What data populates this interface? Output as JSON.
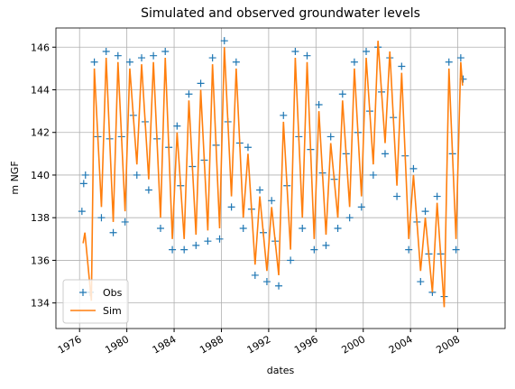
{
  "chart_data": {
    "type": "line",
    "title": "Simulated and observed groundwater levels",
    "x_label": "dates",
    "y_label": "m NGF",
    "xlim": [
      1974.0,
      2012.0
    ],
    "xticks": [
      1976,
      1980,
      1984,
      1988,
      1992,
      1996,
      2000,
      2004,
      2008
    ],
    "ylim": [
      132.8,
      146.9
    ],
    "yticks": [
      134,
      136,
      138,
      140,
      142,
      144,
      146
    ],
    "grid": true,
    "legend": "lower left",
    "series": [
      {
        "name": "Obs",
        "color": "#1f77b4",
        "marker": "+",
        "x": [
          1976.2,
          1976.35,
          1976.5,
          1976.9,
          1977.25,
          1977.55,
          1977.85,
          1978.25,
          1978.55,
          1978.85,
          1979.25,
          1979.55,
          1979.85,
          1980.25,
          1980.55,
          1980.85,
          1981.25,
          1981.55,
          1981.85,
          1982.25,
          1982.55,
          1982.85,
          1983.25,
          1983.55,
          1983.85,
          1984.25,
          1984.55,
          1984.85,
          1985.25,
          1985.55,
          1985.85,
          1986.25,
          1986.55,
          1986.85,
          1987.25,
          1987.55,
          1987.85,
          1988.25,
          1988.55,
          1988.85,
          1989.25,
          1989.55,
          1989.85,
          1990.25,
          1990.55,
          1990.85,
          1991.25,
          1991.55,
          1991.85,
          1992.25,
          1992.55,
          1992.85,
          1993.25,
          1993.55,
          1993.85,
          1994.25,
          1994.55,
          1994.85,
          1995.25,
          1995.55,
          1995.85,
          1996.25,
          1996.55,
          1996.85,
          1997.25,
          1997.55,
          1997.85,
          1998.25,
          1998.55,
          1998.85,
          1999.25,
          1999.55,
          1999.85,
          2000.25,
          2000.55,
          2000.85,
          2001.25,
          2001.55,
          2001.85,
          2002.25,
          2002.55,
          2002.85,
          2003.25,
          2003.55,
          2003.85,
          2004.25,
          2004.55,
          2004.85,
          2005.25,
          2005.55,
          2005.85,
          2006.25,
          2006.55,
          2006.85,
          2007.25,
          2007.55,
          2007.85,
          2008.25,
          2008.45
        ],
        "values": [
          138.3,
          139.6,
          140.0,
          134.5,
          145.3,
          141.8,
          138.0,
          145.8,
          141.7,
          137.3,
          145.6,
          141.8,
          137.8,
          145.3,
          142.8,
          140.0,
          145.5,
          142.5,
          139.3,
          145.6,
          141.7,
          137.5,
          145.8,
          141.3,
          136.5,
          142.3,
          139.5,
          136.5,
          143.8,
          140.4,
          136.7,
          144.3,
          140.7,
          136.9,
          145.5,
          141.4,
          137.0,
          146.3,
          142.5,
          138.5,
          145.3,
          141.5,
          137.5,
          141.3,
          138.4,
          135.3,
          139.3,
          137.3,
          135.0,
          138.8,
          136.9,
          134.8,
          142.8,
          139.5,
          136.0,
          145.8,
          141.8,
          137.5,
          145.6,
          141.2,
          136.5,
          143.3,
          140.1,
          136.7,
          141.8,
          139.8,
          137.5,
          143.8,
          141.0,
          138.0,
          145.3,
          142.0,
          138.5,
          145.8,
          143.0,
          140.0,
          146.0,
          143.9,
          141.0,
          145.5,
          142.7,
          139.0,
          145.1,
          140.9,
          136.5,
          140.3,
          137.8,
          135.0,
          138.3,
          136.3,
          134.5,
          139.0,
          136.3,
          134.3,
          145.3,
          141.0,
          136.5,
          145.5,
          144.5
        ]
      },
      {
        "name": "Sim",
        "color": "#ff7f0e",
        "x": [
          1976.3,
          1976.45,
          1977.0,
          1977.25,
          1977.85,
          1978.25,
          1978.85,
          1979.25,
          1979.85,
          1980.25,
          1980.85,
          1981.25,
          1981.85,
          1982.25,
          1982.85,
          1983.25,
          1983.85,
          1984.25,
          1984.85,
          1985.25,
          1985.85,
          1986.25,
          1986.85,
          1987.25,
          1987.85,
          1988.25,
          1988.85,
          1989.25,
          1989.85,
          1990.25,
          1990.85,
          1991.25,
          1991.85,
          1992.25,
          1992.85,
          1993.25,
          1993.85,
          1994.25,
          1994.85,
          1995.25,
          1995.85,
          1996.25,
          1996.85,
          1997.25,
          1997.85,
          1998.25,
          1998.85,
          1999.25,
          1999.85,
          2000.25,
          2000.85,
          2001.25,
          2001.85,
          2002.25,
          2002.85,
          2003.25,
          2003.85,
          2004.25,
          2004.85,
          2005.25,
          2005.85,
          2006.25,
          2006.85,
          2007.25,
          2007.85,
          2008.25,
          2008.4
        ],
        "values": [
          136.8,
          137.3,
          134.1,
          145.0,
          138.5,
          145.5,
          137.8,
          145.3,
          138.3,
          145.0,
          140.5,
          145.2,
          139.8,
          145.3,
          138.0,
          145.5,
          137.0,
          142.0,
          137.0,
          143.5,
          137.2,
          144.0,
          137.4,
          145.2,
          137.5,
          146.0,
          139.0,
          145.0,
          138.0,
          141.0,
          135.8,
          139.0,
          135.5,
          138.5,
          135.3,
          142.5,
          136.5,
          145.5,
          138.0,
          145.3,
          137.0,
          143.0,
          137.2,
          141.5,
          138.0,
          143.5,
          138.5,
          145.0,
          139.0,
          145.5,
          140.5,
          146.3,
          141.5,
          145.8,
          139.5,
          144.8,
          137.0,
          140.0,
          135.5,
          138.0,
          134.5,
          138.7,
          133.8,
          145.0,
          137.0,
          145.3,
          144.2
        ]
      }
    ]
  }
}
